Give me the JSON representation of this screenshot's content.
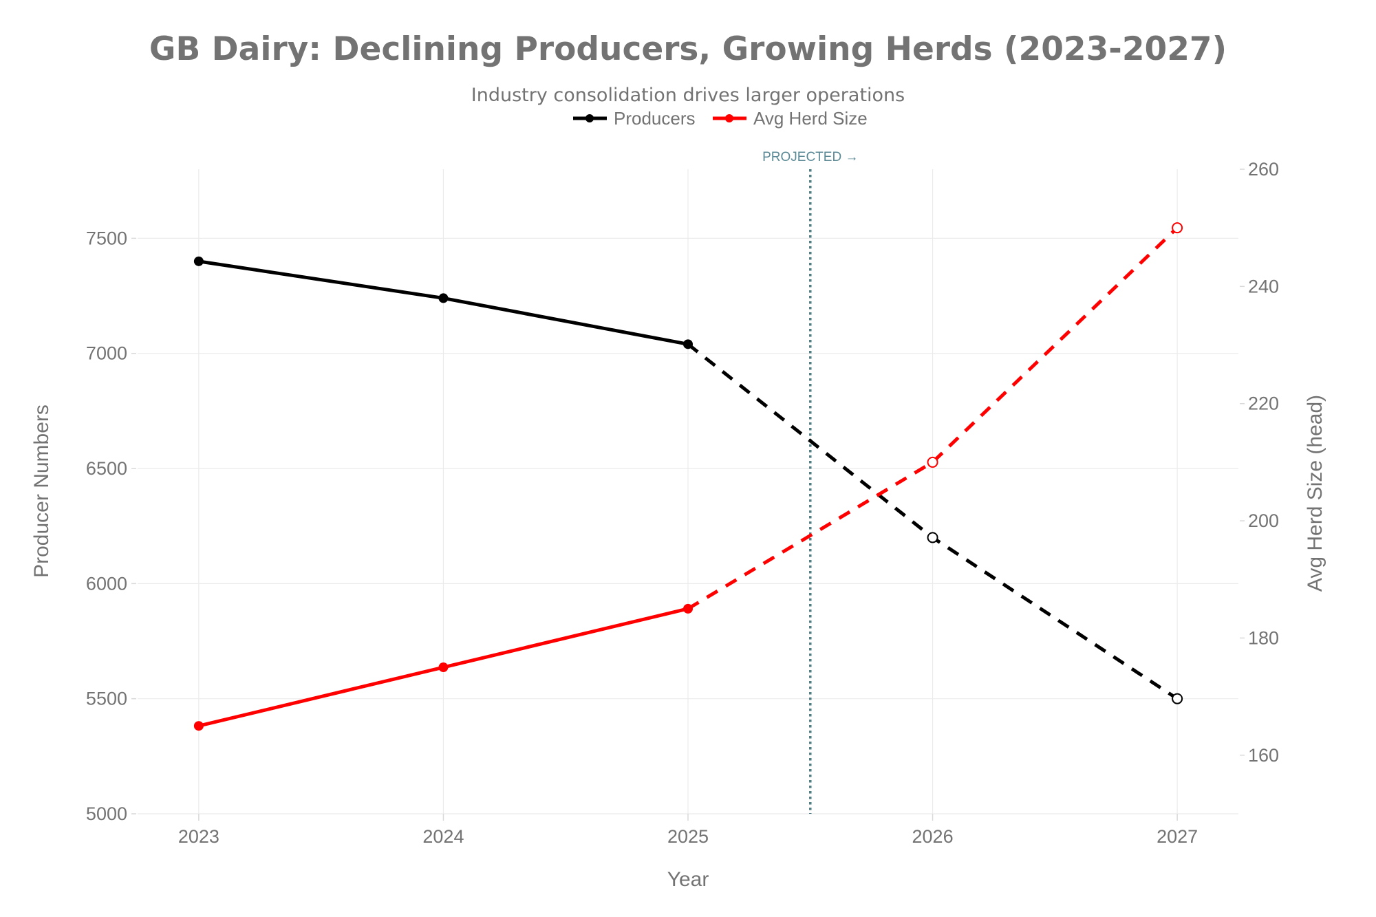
{
  "chart_data": {
    "type": "line",
    "title": "GB Dairy: Declining Producers, Growing Herds (2023-2027)",
    "subtitle": "Industry consolidation drives larger operations",
    "xlabel": "Year",
    "ylabel": "Producer Numbers",
    "y2label": "Avg Herd Size (head)",
    "x": [
      2023,
      2024,
      2025,
      2026,
      2027
    ],
    "x_tick_labels": [
      "2023",
      "2024",
      "2025",
      "2026",
      "2027"
    ],
    "xlim": [
      2022.75,
      2027.25
    ],
    "ylim": [
      5000,
      7800
    ],
    "y_ticks": [
      5000,
      5500,
      6000,
      6500,
      7000,
      7500
    ],
    "y_tick_labels": [
      "5000",
      "5500",
      "6000",
      "6500",
      "7000",
      "7500"
    ],
    "y2lim": [
      150,
      260
    ],
    "y2_ticks": [
      160,
      180,
      200,
      220,
      240,
      260
    ],
    "y2_tick_labels": [
      "160",
      "180",
      "200",
      "220",
      "240",
      "260"
    ],
    "grid": true,
    "legend_position": "top-center",
    "series": [
      {
        "name": "Producers",
        "axis": "left",
        "color": "#000000",
        "values": [
          7400,
          7240,
          7040,
          6200,
          5500
        ],
        "actual_through": 2025,
        "projected_from": 2025
      },
      {
        "name": "Avg Herd Size",
        "axis": "right",
        "color": "#ff0000",
        "values": [
          165,
          175,
          185,
          210,
          250
        ],
        "actual_through": 2025,
        "projected_from": 2025
      }
    ],
    "annotations": [
      {
        "type": "vertical-line",
        "x": 2025.5,
        "style": "dotted",
        "color": "#4f7d82",
        "label": "PROJECTED →"
      }
    ]
  }
}
